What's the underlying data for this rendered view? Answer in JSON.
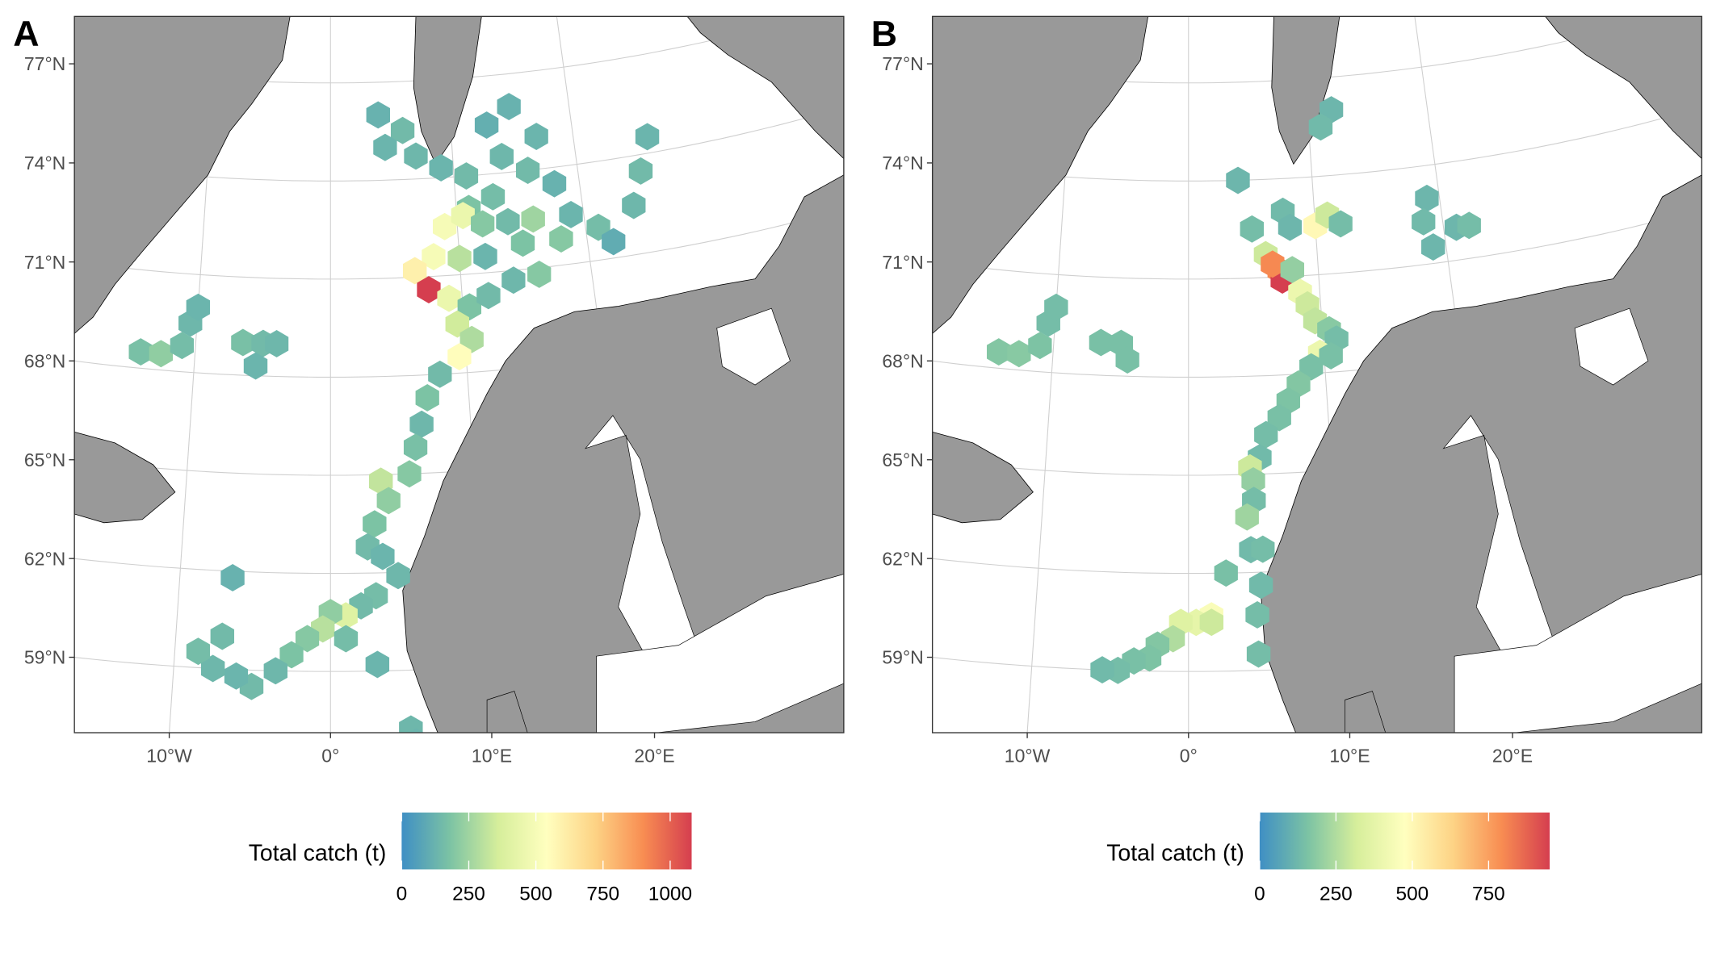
{
  "map": {
    "lat_ticks": [
      {
        "value": 77,
        "label": "77°N"
      },
      {
        "value": 74,
        "label": "74°N"
      },
      {
        "value": 71,
        "label": "71°N"
      },
      {
        "value": 68,
        "label": "68°N"
      },
      {
        "value": 65,
        "label": "65°N"
      },
      {
        "value": 62,
        "label": "62°N"
      },
      {
        "value": 59,
        "label": "59°N"
      }
    ],
    "lon_ticks": [
      {
        "value": -10,
        "label": "10°W"
      },
      {
        "value": 0,
        "label": "0°"
      },
      {
        "value": 10,
        "label": "10°E"
      },
      {
        "value": 20,
        "label": "20°E"
      }
    ],
    "colors": [
      "#3f8fc4",
      "#7cc3a4",
      "#d6ee9b",
      "#ffffbf",
      "#fdd385",
      "#f88d52",
      "#d53e4f"
    ]
  },
  "panels": [
    {
      "label": "A",
      "colorbar": {
        "title": "Total catch (t)",
        "lim": [
          0,
          1080
        ],
        "ticks": [
          0,
          250,
          500,
          750,
          1000
        ]
      },
      "hexes": {
        "lon": [
          4,
          6,
          4.5,
          7,
          9,
          11,
          13,
          15,
          17,
          14,
          16,
          18,
          13,
          11,
          9,
          10.5,
          12,
          14,
          16,
          19,
          21,
          24,
          25,
          26,
          22,
          18,
          15,
          12,
          10,
          8,
          6.5,
          7.5,
          9,
          10.5,
          12,
          14,
          16,
          9.5,
          10.5,
          9.5,
          8,
          7,
          6.5,
          6,
          5.5,
          3.5,
          4,
          3,
          2.5,
          3.5,
          4.5,
          3,
          2,
          1,
          0,
          -0.5,
          1,
          -1.5,
          -2.5,
          -3.5,
          -5,
          -6,
          -7.5,
          -8.5,
          -7,
          -6.5,
          3,
          5,
          5.3,
          -14,
          -12.5,
          -11,
          -10.5,
          -10,
          -6.5,
          -5,
          -4,
          -5.5
        ],
        "lat": [
          76,
          75.5,
          75,
          74.7,
          74.3,
          74,
          75.5,
          76,
          75,
          74.5,
          74,
          73.5,
          73.3,
          73,
          72.5,
          72.8,
          72.5,
          72.5,
          72.5,
          72.5,
          72,
          72.5,
          73.5,
          74.5,
          71.5,
          71.8,
          71.8,
          71.5,
          71.5,
          71.6,
          71.2,
          70.6,
          70.3,
          70,
          70.3,
          70.7,
          70.8,
          69.5,
          69,
          68.5,
          68,
          67.3,
          66.5,
          65.8,
          65,
          64.8,
          64.2,
          63.5,
          62.8,
          62.5,
          61.9,
          61.3,
          61,
          60.7,
          60.8,
          60.3,
          60,
          60,
          59.5,
          59,
          58.5,
          58.8,
          59,
          59.5,
          60,
          61.8,
          59.2,
          57.2,
          56.8,
          68.5,
          68.5,
          68.8,
          69.5,
          70,
          69,
          69,
          69,
          68.3
        ],
        "value": [
          120,
          150,
          130,
          140,
          130,
          150,
          110,
          120,
          130,
          140,
          150,
          120,
          160,
          180,
          500,
          450,
          200,
          150,
          250,
          130,
          160,
          140,
          150,
          130,
          100,
          200,
          180,
          130,
          300,
          500,
          600,
          1080,
          450,
          180,
          150,
          140,
          200,
          350,
          280,
          550,
          150,
          180,
          140,
          170,
          200,
          320,
          220,
          180,
          150,
          130,
          140,
          160,
          150,
          400,
          220,
          300,
          160,
          200,
          180,
          140,
          150,
          130,
          140,
          160,
          150,
          120,
          130,
          140,
          130,
          170,
          220,
          160,
          140,
          130,
          170,
          150,
          140,
          130
        ]
      }
    },
    {
      "label": "B",
      "colorbar": {
        "title": "Total catch (t)",
        "lim": [
          0,
          950
        ],
        "ticks": [
          0,
          250,
          500,
          750
        ]
      },
      "hexes": {
        "lon": [
          12,
          11,
          4,
          19,
          7.5,
          5,
          8,
          10,
          11,
          12,
          18.5,
          21,
          22,
          19,
          6,
          7,
          7.2,
          6.5,
          8,
          8.5,
          9,
          9.5,
          10.5,
          11,
          9.7,
          10.5,
          9,
          8,
          7.2,
          6.5,
          5.5,
          5,
          4.3,
          4.5,
          4.5,
          4,
          4.2,
          5,
          2.5,
          4.8,
          4.5,
          1.5,
          0.5,
          1.5,
          -0.5,
          -1,
          -2,
          -2.5,
          -3.5,
          -4.5,
          -5.5,
          4.5,
          -14,
          -12.5,
          -11,
          -10.5,
          -10,
          -6.5,
          -5,
          -4.5
        ],
        "lat": [
          76,
          75.5,
          74,
          73,
          73,
          72.5,
          72.5,
          72.5,
          72.8,
          72.5,
          72.3,
          72,
          72,
          71.5,
          71.7,
          71.2,
          70.9,
          71.4,
          71.2,
          70.5,
          70.1,
          69.6,
          69.3,
          69,
          68.6,
          68.5,
          68.2,
          67.7,
          67.2,
          66.7,
          66.2,
          65.5,
          65.2,
          64.8,
          64.2,
          63.7,
          62.7,
          62.7,
          62,
          61.6,
          60.7,
          60.7,
          60.5,
          60.5,
          60.5,
          60,
          59.8,
          59.4,
          59.3,
          59,
          59,
          59.5,
          68.5,
          68.5,
          68.8,
          69.5,
          70,
          69,
          69,
          68.5
        ],
        "value": [
          120,
          130,
          120,
          120,
          130,
          140,
          120,
          500,
          300,
          140,
          130,
          120,
          140,
          120,
          300,
          800,
          950,
          800,
          200,
          400,
          300,
          280,
          180,
          140,
          400,
          150,
          150,
          170,
          160,
          150,
          140,
          130,
          300,
          200,
          140,
          220,
          130,
          140,
          150,
          130,
          140,
          450,
          380,
          300,
          350,
          250,
          170,
          160,
          150,
          140,
          130,
          140,
          170,
          180,
          160,
          140,
          140,
          150,
          150,
          150
        ]
      }
    }
  ]
}
